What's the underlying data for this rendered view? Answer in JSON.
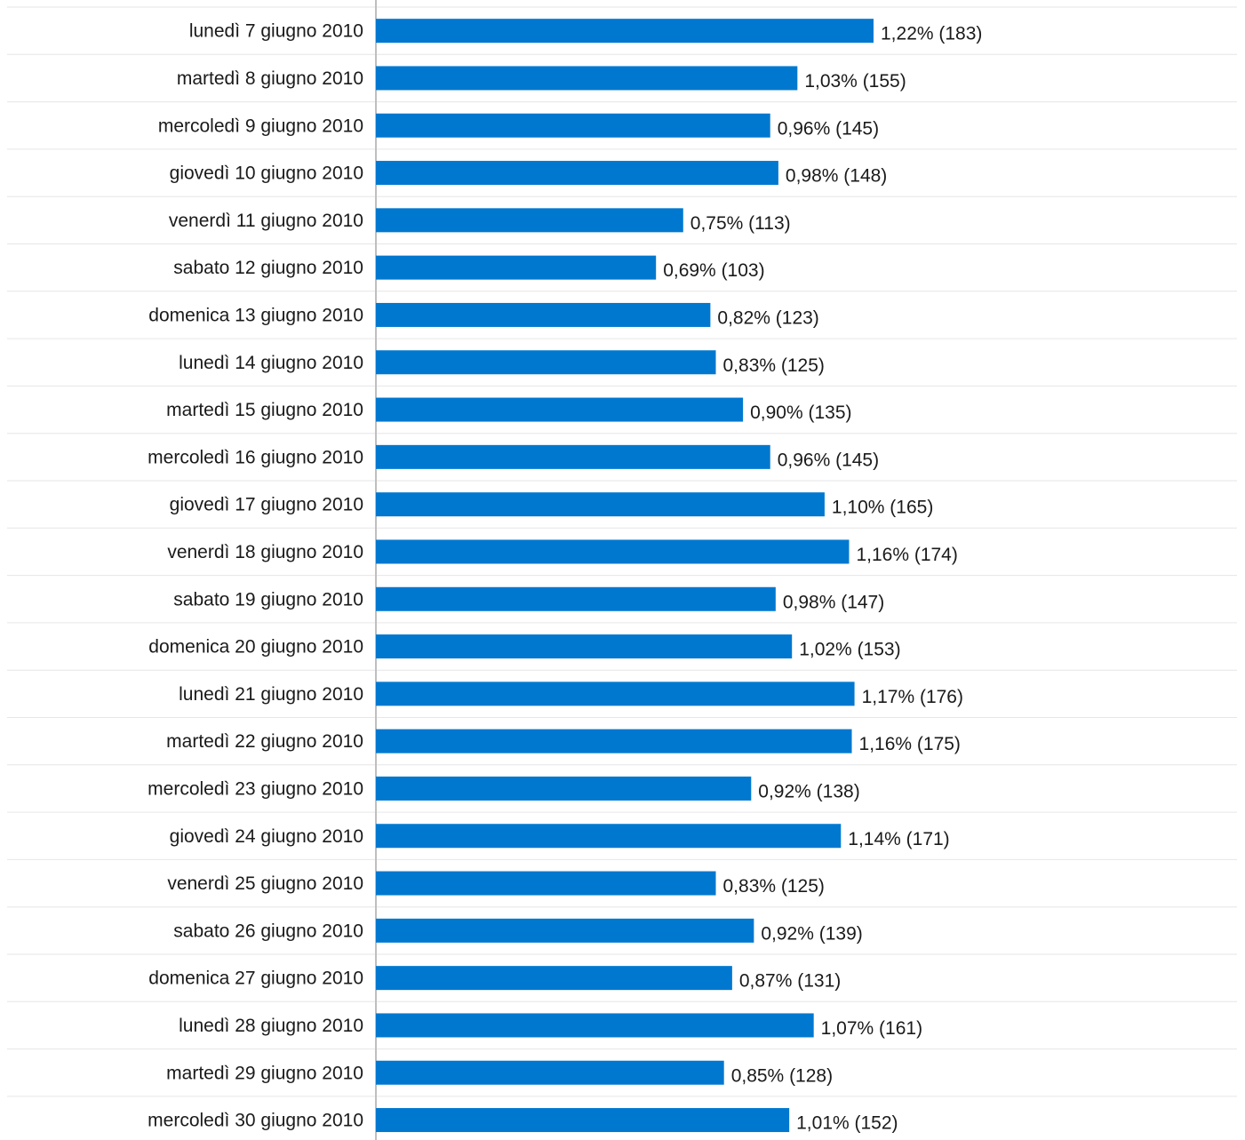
{
  "chart_data": {
    "type": "bar",
    "orientation": "horizontal",
    "categories": [
      "lunedì 7 giugno 2010",
      "martedì 8 giugno 2010",
      "mercoledì 9 giugno 2010",
      "giovedì 10 giugno 2010",
      "venerdì 11 giugno 2010",
      "sabato 12 giugno 2010",
      "domenica 13 giugno 2010",
      "lunedì 14 giugno 2010",
      "martedì 15 giugno 2010",
      "mercoledì 16 giugno 2010",
      "giovedì 17 giugno 2010",
      "venerdì 18 giugno 2010",
      "sabato 19 giugno 2010",
      "domenica 20 giugno 2010",
      "lunedì 21 giugno 2010",
      "martedì 22 giugno 2010",
      "mercoledì 23 giugno 2010",
      "giovedì 24 giugno 2010",
      "venerdì 25 giugno 2010",
      "sabato 26 giugno 2010",
      "domenica 27 giugno 2010",
      "lunedì 28 giugno 2010",
      "martedì 29 giugno 2010",
      "mercoledì 30 giugno 2010"
    ],
    "values": [
      183,
      155,
      145,
      148,
      113,
      103,
      123,
      125,
      135,
      145,
      165,
      174,
      147,
      153,
      176,
      175,
      138,
      171,
      125,
      139,
      131,
      161,
      128,
      152
    ],
    "data_labels": [
      "1,22% (183)",
      "1,03% (155)",
      "0,96% (145)",
      "0,98% (148)",
      "0,75% (113)",
      "0,69% (103)",
      "0,82% (123)",
      "0,83% (125)",
      "0,90% (135)",
      "0,96% (145)",
      "1,10% (165)",
      "1,16% (174)",
      "0,98% (147)",
      "1,02% (153)",
      "1,17% (176)",
      "1,16% (175)",
      "0,92% (138)",
      "1,14% (171)",
      "0,83% (125)",
      "0,92% (139)",
      "0,87% (131)",
      "1,07% (161)",
      "0,85% (128)",
      "1,01% (152)"
    ],
    "xlim": [
      0,
      300
    ],
    "grid": true,
    "title": "",
    "xlabel": "",
    "ylabel": ""
  },
  "colors": {
    "bar": "#0078d0",
    "row_divider": "#e6e6e6",
    "axis_line": "#bfbfbf",
    "text": "#1a1a1a"
  }
}
